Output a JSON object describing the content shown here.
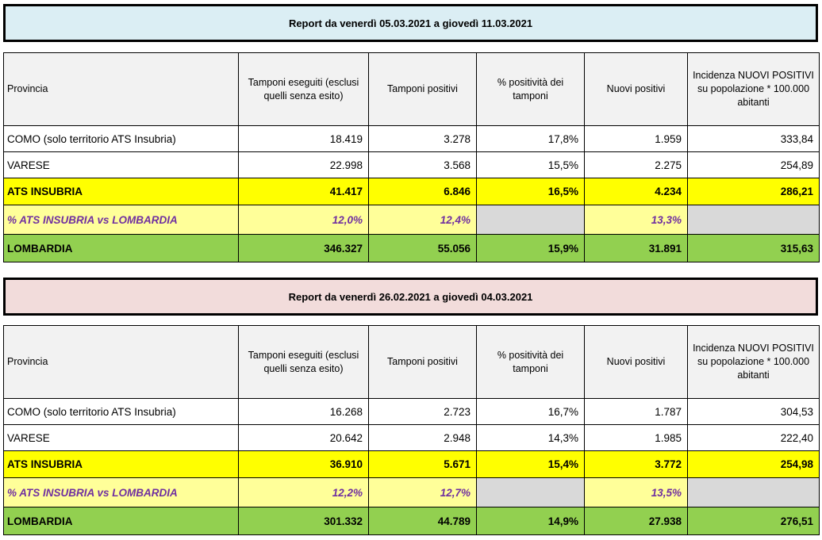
{
  "columns": [
    "Provincia",
    "Tamponi eseguiti (esclusi quelli senza esito)",
    "Tamponi positivi",
    "% positività dei tamponi",
    "Nuovi positivi",
    "Incidenza NUOVI POSITIVI su popolazione * 100.000 abitanti"
  ],
  "reports": [
    {
      "title": "Report da venerdì 05.03.2021 a giovedì 11.03.2021",
      "rows": [
        {
          "type": "plain",
          "cells": [
            "COMO (solo territorio ATS Insubria)",
            "18.419",
            "3.278",
            "17,8%",
            "1.959",
            "333,84"
          ]
        },
        {
          "type": "plain",
          "cells": [
            "VARESE",
            "22.998",
            "3.568",
            "15,5%",
            "2.275",
            "254,89"
          ]
        },
        {
          "type": "ats",
          "cells": [
            "ATS INSUBRIA",
            "41.417",
            "6.846",
            "16,5%",
            "4.234",
            "286,21"
          ]
        },
        {
          "type": "pct",
          "cells": [
            "% ATS INSUBRIA vs LOMBARDIA",
            "12,0%",
            "12,4%",
            "",
            "13,3%",
            ""
          ]
        },
        {
          "type": "lom",
          "cells": [
            "LOMBARDIA",
            "346.327",
            "55.056",
            "15,9%",
            "31.891",
            "315,63"
          ]
        }
      ]
    },
    {
      "title": "Report da venerdì 26.02.2021 a giovedì 04.03.2021",
      "rows": [
        {
          "type": "plain",
          "cells": [
            "COMO (solo territorio ATS Insubria)",
            "16.268",
            "2.723",
            "16,7%",
            "1.787",
            "304,53"
          ]
        },
        {
          "type": "plain",
          "cells": [
            "VARESE",
            "20.642",
            "2.948",
            "14,3%",
            "1.985",
            "222,40"
          ]
        },
        {
          "type": "ats",
          "cells": [
            "ATS INSUBRIA",
            "36.910",
            "5.671",
            "15,4%",
            "3.772",
            "254,98"
          ]
        },
        {
          "type": "pct",
          "cells": [
            "% ATS INSUBRIA vs LOMBARDIA",
            "12,2%",
            "12,7%",
            "",
            "13,5%",
            ""
          ]
        },
        {
          "type": "lom",
          "cells": [
            "LOMBARDIA",
            "301.332",
            "44.789",
            "14,9%",
            "27.938",
            "276,51"
          ]
        }
      ]
    }
  ],
  "colors": {
    "header_bg": "#f2f2f2",
    "ats": "#ffff00",
    "pct": "#ffff99",
    "lombardia": "#92d050",
    "pct_text": "#7030a0"
  }
}
